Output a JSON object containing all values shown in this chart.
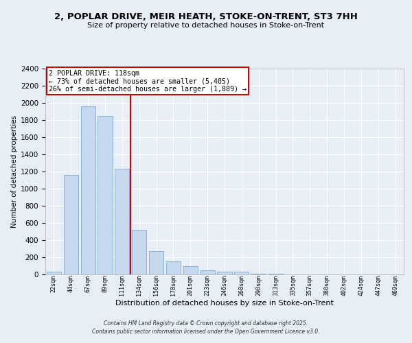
{
  "title1": "2, POPLAR DRIVE, MEIR HEATH, STOKE-ON-TRENT, ST3 7HH",
  "title2": "Size of property relative to detached houses in Stoke-on-Trent",
  "xlabel": "Distribution of detached houses by size in Stoke-on-Trent",
  "ylabel": "Number of detached properties",
  "categories": [
    "22sqm",
    "44sqm",
    "67sqm",
    "89sqm",
    "111sqm",
    "134sqm",
    "156sqm",
    "178sqm",
    "201sqm",
    "223sqm",
    "246sqm",
    "268sqm",
    "290sqm",
    "313sqm",
    "335sqm",
    "357sqm",
    "380sqm",
    "402sqm",
    "424sqm",
    "447sqm",
    "469sqm"
  ],
  "values": [
    30,
    1160,
    1960,
    1850,
    1230,
    520,
    275,
    155,
    95,
    45,
    35,
    35,
    10,
    5,
    3,
    2,
    2,
    2,
    2,
    2,
    2
  ],
  "bar_color": "#c5d8ee",
  "bar_edge_color": "#7aadd4",
  "property_label": "2 POPLAR DRIVE: 118sqm",
  "annotation_line1": "← 73% of detached houses are smaller (5,405)",
  "annotation_line2": "26% of semi-detached houses are larger (1,889) →",
  "vline_color": "#cc0000",
  "vline_position": 4.5,
  "box_color": "#cc0000",
  "background_color": "#e8eef5",
  "grid_color": "#ffffff",
  "ylim": [
    0,
    2400
  ],
  "footer1": "Contains HM Land Registry data © Crown copyright and database right 2025.",
  "footer2": "Contains public sector information licensed under the Open Government Licence v3.0."
}
